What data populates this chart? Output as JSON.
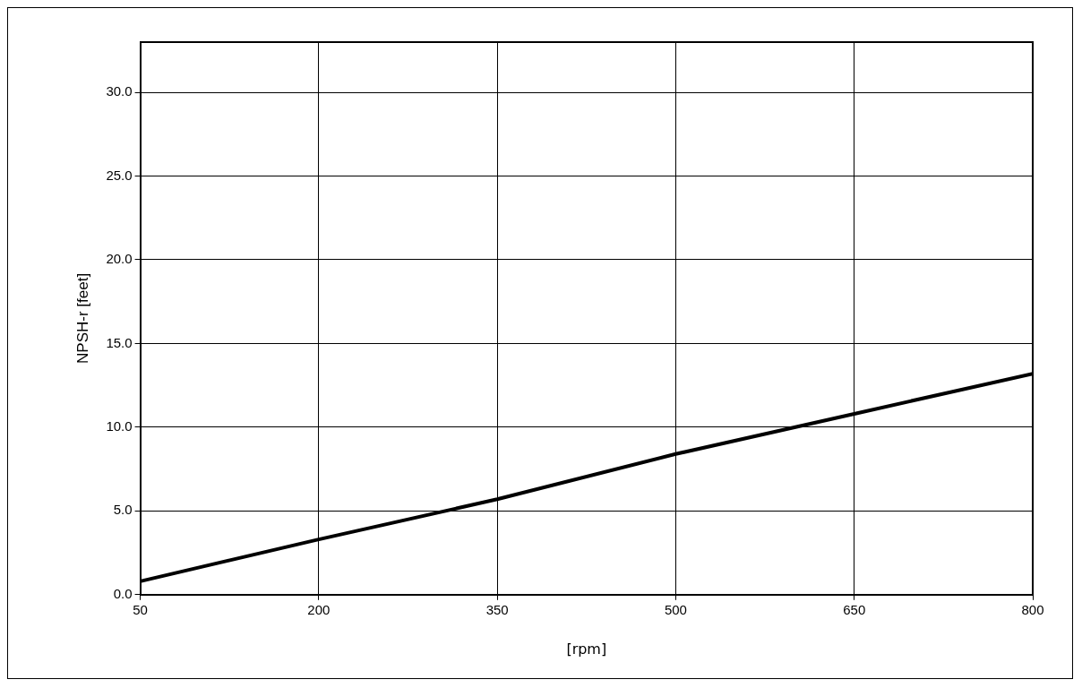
{
  "chart_data": {
    "type": "line",
    "xlabel": "[rpm]",
    "ylabel": "NPSH-r [feet]",
    "x": [
      50,
      200,
      350,
      500,
      650,
      800
    ],
    "series": [
      {
        "color": "#000000",
        "values": [
          0.8,
          3.3,
          5.7,
          8.4,
          10.8,
          13.2
        ]
      }
    ],
    "xlim": [
      50,
      800
    ],
    "xticks": [
      50,
      200,
      350,
      500,
      650,
      800
    ],
    "ylim": [
      0,
      33
    ],
    "yticks": [
      {
        "value": 0,
        "label": "0.0"
      },
      {
        "value": 5,
        "label": "5.0"
      },
      {
        "value": 10,
        "label": "10.0"
      },
      {
        "value": 15,
        "label": "15.0"
      },
      {
        "value": 20,
        "label": "20.0"
      },
      {
        "value": 25,
        "label": "25.0"
      },
      {
        "value": 30,
        "label": "30.0"
      }
    ],
    "grid": true,
    "legend": false,
    "marker": "none",
    "line_style": "solid"
  }
}
